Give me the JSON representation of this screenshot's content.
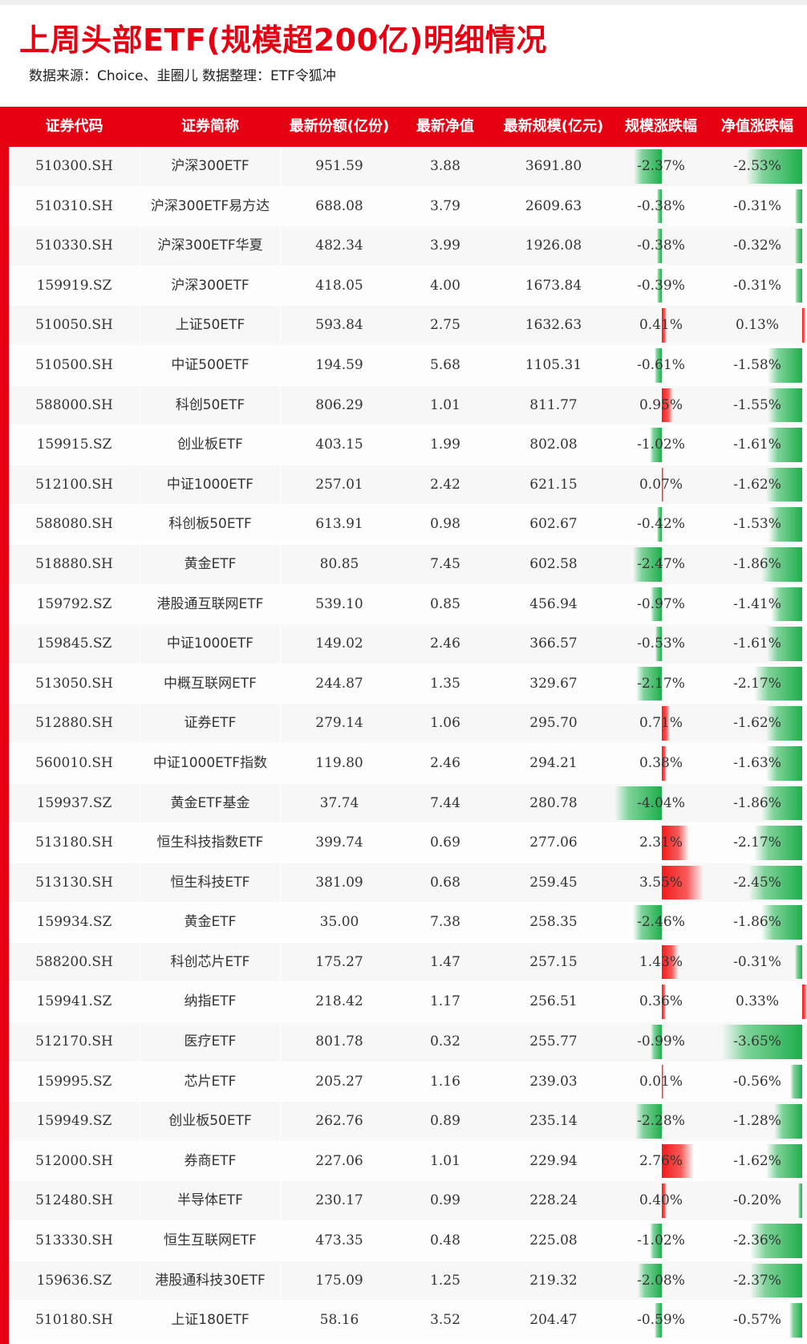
{
  "title": "上周头部ETF(规模超200亿)明细情况",
  "source": "数据来源：Choice、韭圈儿   数据整理：ETF令狐冲",
  "colors": {
    "accent": "#e60012",
    "negative": "#1fae4c",
    "positive": "#f21a1a"
  },
  "headers": [
    "证券代码",
    "证券简称",
    "最新份额(亿份)",
    "最新净值",
    "最新规模(亿元)",
    "规模涨跌幅",
    "净值涨跌幅"
  ],
  "rows": [
    {
      "code": "510300.SH",
      "name": "沪深300ETF",
      "shares": "951.59",
      "nav": "3.88",
      "aum": "3691.80",
      "aum_chg": "-2.37%",
      "nav_chg": "-2.53%"
    },
    {
      "code": "510310.SH",
      "name": "沪深300ETF易方达",
      "shares": "688.08",
      "nav": "3.79",
      "aum": "2609.63",
      "aum_chg": "-0.38%",
      "nav_chg": "-0.31%"
    },
    {
      "code": "510330.SH",
      "name": "沪深300ETF华夏",
      "shares": "482.34",
      "nav": "3.99",
      "aum": "1926.08",
      "aum_chg": "-0.38%",
      "nav_chg": "-0.32%"
    },
    {
      "code": "159919.SZ",
      "name": "沪深300ETF",
      "shares": "418.05",
      "nav": "4.00",
      "aum": "1673.84",
      "aum_chg": "-0.39%",
      "nav_chg": "-0.31%"
    },
    {
      "code": "510050.SH",
      "name": "上证50ETF",
      "shares": "593.84",
      "nav": "2.75",
      "aum": "1632.63",
      "aum_chg": "0.41%",
      "nav_chg": "0.13%"
    },
    {
      "code": "510500.SH",
      "name": "中证500ETF",
      "shares": "194.59",
      "nav": "5.68",
      "aum": "1105.31",
      "aum_chg": "-0.61%",
      "nav_chg": "-1.58%"
    },
    {
      "code": "588000.SH",
      "name": "科创50ETF",
      "shares": "806.29",
      "nav": "1.01",
      "aum": "811.77",
      "aum_chg": "0.95%",
      "nav_chg": "-1.55%"
    },
    {
      "code": "159915.SZ",
      "name": "创业板ETF",
      "shares": "403.15",
      "nav": "1.99",
      "aum": "802.08",
      "aum_chg": "-1.02%",
      "nav_chg": "-1.61%"
    },
    {
      "code": "512100.SH",
      "name": "中证1000ETF",
      "shares": "257.01",
      "nav": "2.42",
      "aum": "621.15",
      "aum_chg": "0.07%",
      "nav_chg": "-1.62%"
    },
    {
      "code": "588080.SH",
      "name": "科创板50ETF",
      "shares": "613.91",
      "nav": "0.98",
      "aum": "602.67",
      "aum_chg": "-0.42%",
      "nav_chg": "-1.53%"
    },
    {
      "code": "518880.SH",
      "name": "黄金ETF",
      "shares": "80.85",
      "nav": "7.45",
      "aum": "602.58",
      "aum_chg": "-2.47%",
      "nav_chg": "-1.86%"
    },
    {
      "code": "159792.SZ",
      "name": "港股通互联网ETF",
      "shares": "539.10",
      "nav": "0.85",
      "aum": "456.94",
      "aum_chg": "-0.97%",
      "nav_chg": "-1.41%"
    },
    {
      "code": "159845.SZ",
      "name": "中证1000ETF",
      "shares": "149.02",
      "nav": "2.46",
      "aum": "366.57",
      "aum_chg": "-0.53%",
      "nav_chg": "-1.61%"
    },
    {
      "code": "513050.SH",
      "name": "中概互联网ETF",
      "shares": "244.87",
      "nav": "1.35",
      "aum": "329.67",
      "aum_chg": "-2.17%",
      "nav_chg": "-2.17%"
    },
    {
      "code": "512880.SH",
      "name": "证券ETF",
      "shares": "279.14",
      "nav": "1.06",
      "aum": "295.70",
      "aum_chg": "0.71%",
      "nav_chg": "-1.62%"
    },
    {
      "code": "560010.SH",
      "name": "中证1000ETF指数",
      "shares": "119.80",
      "nav": "2.46",
      "aum": "294.21",
      "aum_chg": "0.38%",
      "nav_chg": "-1.63%"
    },
    {
      "code": "159937.SZ",
      "name": "黄金ETF基金",
      "shares": "37.74",
      "nav": "7.44",
      "aum": "280.78",
      "aum_chg": "-4.04%",
      "nav_chg": "-1.86%"
    },
    {
      "code": "513180.SH",
      "name": "恒生科技指数ETF",
      "shares": "399.74",
      "nav": "0.69",
      "aum": "277.06",
      "aum_chg": "2.31%",
      "nav_chg": "-2.17%"
    },
    {
      "code": "513130.SH",
      "name": "恒生科技ETF",
      "shares": "381.09",
      "nav": "0.68",
      "aum": "259.45",
      "aum_chg": "3.55%",
      "nav_chg": "-2.45%"
    },
    {
      "code": "159934.SZ",
      "name": "黄金ETF",
      "shares": "35.00",
      "nav": "7.38",
      "aum": "258.35",
      "aum_chg": "-2.46%",
      "nav_chg": "-1.86%"
    },
    {
      "code": "588200.SH",
      "name": "科创芯片ETF",
      "shares": "175.27",
      "nav": "1.47",
      "aum": "257.15",
      "aum_chg": "1.43%",
      "nav_chg": "-0.31%"
    },
    {
      "code": "159941.SZ",
      "name": "纳指ETF",
      "shares": "218.42",
      "nav": "1.17",
      "aum": "256.51",
      "aum_chg": "0.36%",
      "nav_chg": "0.33%"
    },
    {
      "code": "512170.SH",
      "name": "医疗ETF",
      "shares": "801.78",
      "nav": "0.32",
      "aum": "255.77",
      "aum_chg": "-0.99%",
      "nav_chg": "-3.65%"
    },
    {
      "code": "159995.SZ",
      "name": "芯片ETF",
      "shares": "205.27",
      "nav": "1.16",
      "aum": "239.03",
      "aum_chg": "0.01%",
      "nav_chg": "-0.56%"
    },
    {
      "code": "159949.SZ",
      "name": "创业板50ETF",
      "shares": "262.76",
      "nav": "0.89",
      "aum": "235.14",
      "aum_chg": "-2.28%",
      "nav_chg": "-1.28%"
    },
    {
      "code": "512000.SH",
      "name": "券商ETF",
      "shares": "227.06",
      "nav": "1.01",
      "aum": "229.94",
      "aum_chg": "2.76%",
      "nav_chg": "-1.62%"
    },
    {
      "code": "512480.SH",
      "name": "半导体ETF",
      "shares": "230.17",
      "nav": "0.99",
      "aum": "228.24",
      "aum_chg": "0.40%",
      "nav_chg": "-0.20%"
    },
    {
      "code": "513330.SH",
      "name": "恒生互联网ETF",
      "shares": "473.35",
      "nav": "0.48",
      "aum": "225.08",
      "aum_chg": "-1.02%",
      "nav_chg": "-2.36%"
    },
    {
      "code": "159636.SZ",
      "name": "港股通科技30ETF",
      "shares": "175.09",
      "nav": "1.25",
      "aum": "219.32",
      "aum_chg": "-2.08%",
      "nav_chg": "-2.37%"
    },
    {
      "code": "510180.SH",
      "name": "上证180ETF",
      "shares": "58.16",
      "nav": "3.52",
      "aum": "204.47",
      "aum_chg": "-0.59%",
      "nav_chg": "-0.57%"
    }
  ]
}
